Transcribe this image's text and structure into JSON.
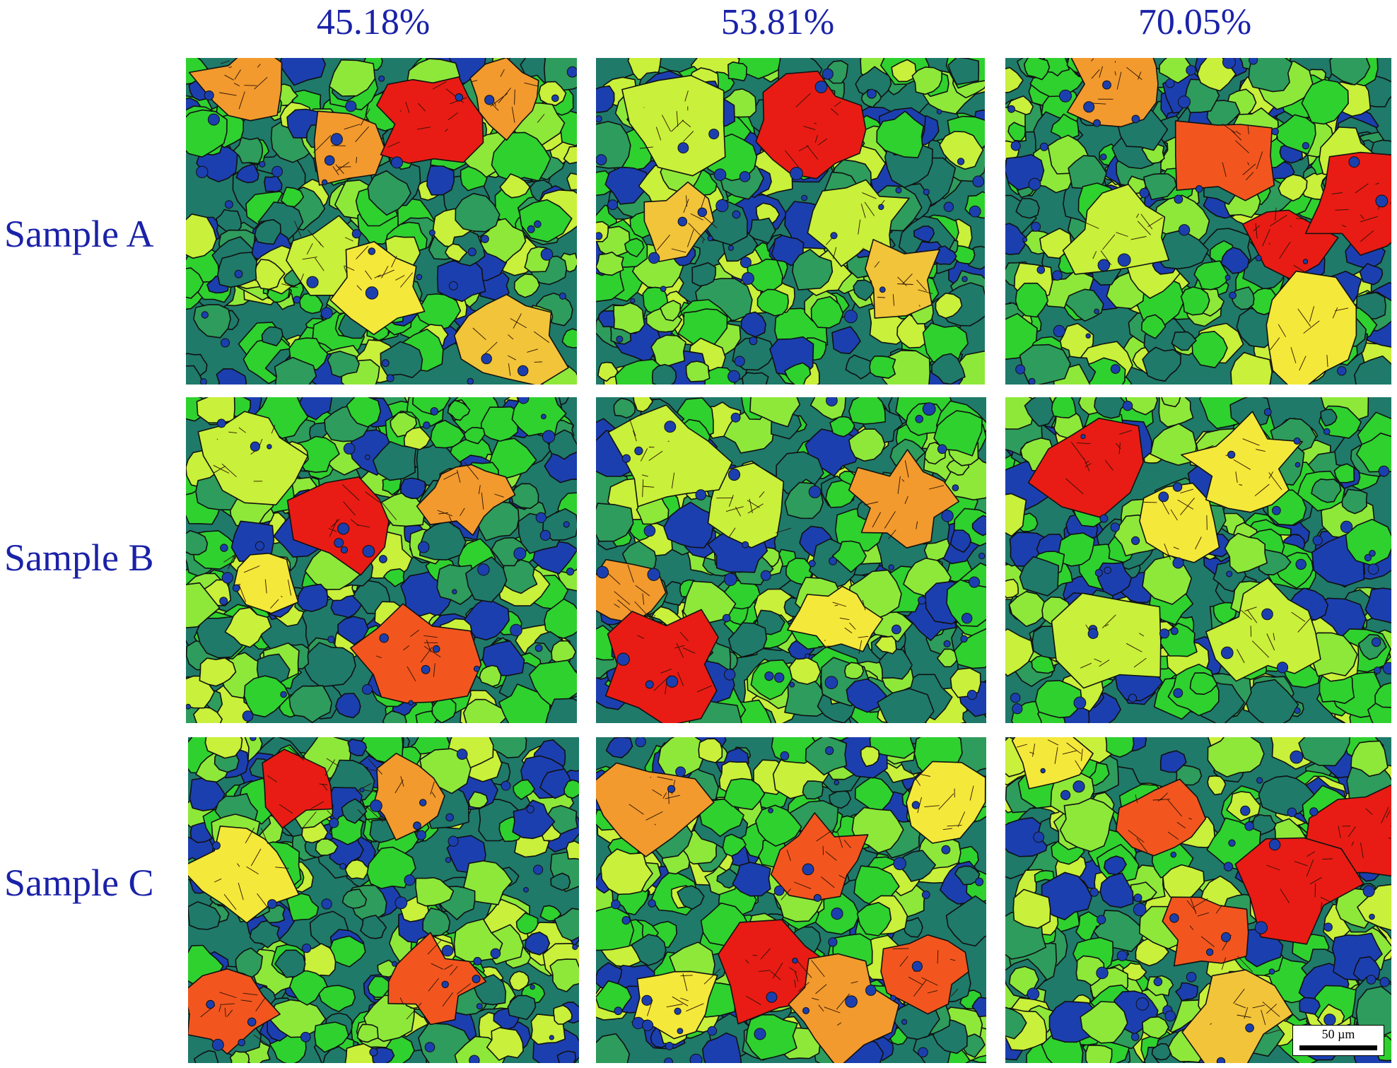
{
  "columns": [
    "45.18%",
    "53.81%",
    "70.05%"
  ],
  "rows": [
    "Sample A",
    "Sample B",
    "Sample C"
  ],
  "scale_bar": "50 µm",
  "palette": {
    "blue": "#1c3fb0",
    "teal": "#1f7a6a",
    "sea_green": "#2e9c5c",
    "green": "#2fd12f",
    "lime": "#8ee83a",
    "yellow_green": "#c9f03a",
    "yellow": "#f4e83a",
    "gold": "#f2c43a",
    "orange": "#f29a2e",
    "red_orange": "#f2561e",
    "red": "#e81c14"
  }
}
